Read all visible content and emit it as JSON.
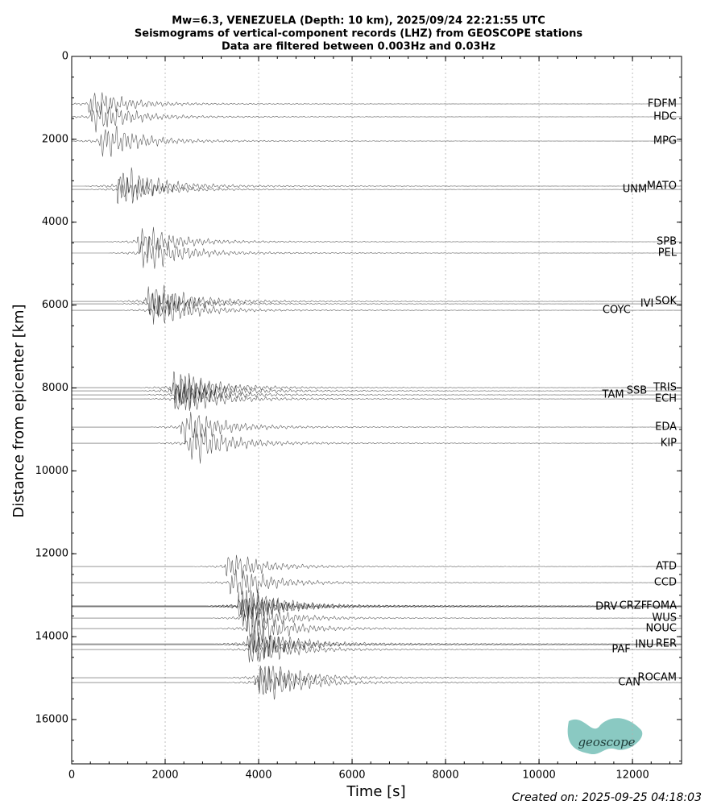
{
  "chart_data": {
    "type": "seismogram",
    "title": [
      "Mw=6.3, VENEZUELA (Depth: 10 km), 2025/09/24 22:21:55 UTC",
      "Seismograms of vertical-component records (LHZ) from GEOSCOPE stations",
      "Data are filtered between 0.003Hz and 0.03Hz"
    ],
    "xlabel": "Time [s]",
    "ylabel": "Distance from epicenter [km]",
    "xlim": [
      0,
      13050
    ],
    "ylim": [
      0,
      17070
    ],
    "xticks": [
      0,
      2000,
      4000,
      6000,
      8000,
      10000,
      12000
    ],
    "yticks": [
      0,
      2000,
      4000,
      6000,
      8000,
      10000,
      12000,
      14000,
      16000
    ],
    "grid": true,
    "y_inverted": true,
    "color": "#000000",
    "stations": [
      {
        "name": "FDFM",
        "distance": 1147,
        "arrival": 360
      },
      {
        "name": "HDC",
        "distance": 1458,
        "arrival": 410
      },
      {
        "name": "MPG",
        "distance": 2042,
        "arrival": 590
      },
      {
        "name": "MATO",
        "distance": 3130,
        "arrival": 970
      },
      {
        "name": "UNM",
        "distance": 3210,
        "arrival": 980
      },
      {
        "name": "SPB",
        "distance": 4472,
        "arrival": 1400
      },
      {
        "name": "PEL",
        "distance": 4744,
        "arrival": 1480
      },
      {
        "name": "SOK",
        "distance": 5911,
        "arrival": 1570
      },
      {
        "name": "IVI",
        "distance": 5970,
        "arrival": 1650
      },
      {
        "name": "COYC",
        "distance": 6125,
        "arrival": 1740
      },
      {
        "name": "TRIS",
        "distance": 7992,
        "arrival": 2120
      },
      {
        "name": "SSB",
        "distance": 8070,
        "arrival": 2150
      },
      {
        "name": "TAM",
        "distance": 8166,
        "arrival": 2200
      },
      {
        "name": "ECH",
        "distance": 8264,
        "arrival": 2230
      },
      {
        "name": "EDA",
        "distance": 8944,
        "arrival": 2340
      },
      {
        "name": "KIP",
        "distance": 9333,
        "arrival": 2470
      },
      {
        "name": "ATD",
        "distance": 12308,
        "arrival": 3260
      },
      {
        "name": "CCD",
        "distance": 12697,
        "arrival": 3380
      },
      {
        "name": "FOMA",
        "distance": 13261,
        "arrival": 3550
      },
      {
        "name": "CRZF",
        "distance": 13261,
        "arrival": 3560
      },
      {
        "name": "DRV",
        "distance": 13280,
        "arrival": 3570
      },
      {
        "name": "WUS",
        "distance": 13553,
        "arrival": 3640
      },
      {
        "name": "NOUC",
        "distance": 13805,
        "arrival": 3720
      },
      {
        "name": "RER",
        "distance": 14175,
        "arrival": 3730
      },
      {
        "name": "INU",
        "distance": 14194,
        "arrival": 3800
      },
      {
        "name": "PAF",
        "distance": 14311,
        "arrival": 3810
      },
      {
        "name": "ROCAM",
        "distance": 14991,
        "arrival": 3930
      },
      {
        "name": "CAN",
        "distance": 15108,
        "arrival": 3980
      }
    ],
    "logo": "geoscope",
    "footer": "Created on: 2025-09-25 04:18:03"
  }
}
